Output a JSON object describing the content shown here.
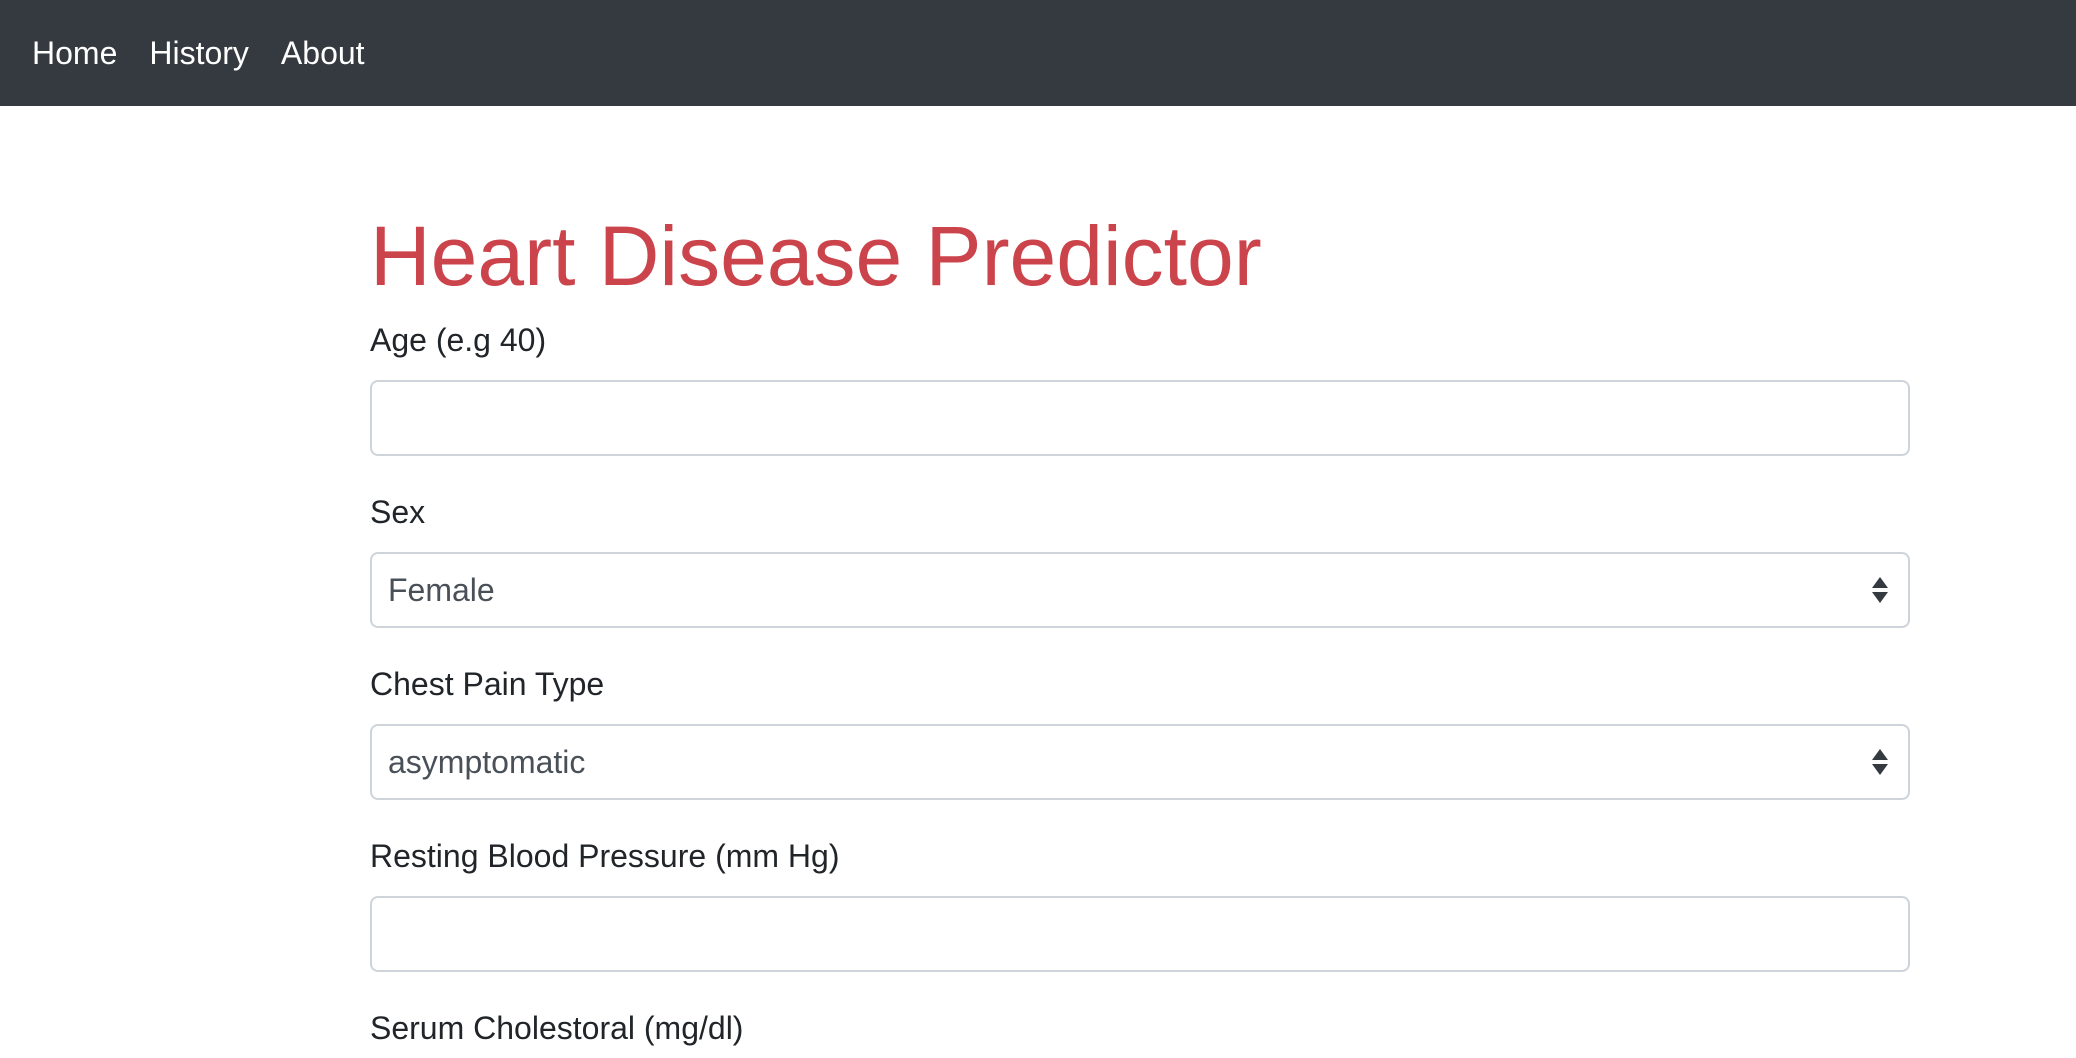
{
  "nav": {
    "items": [
      {
        "label": "Home"
      },
      {
        "label": "History"
      },
      {
        "label": "About"
      }
    ]
  },
  "page": {
    "title": "Heart Disease Predictor",
    "title_color": "#cc444b"
  },
  "form": {
    "age": {
      "label": "Age (e.g 40)",
      "value": ""
    },
    "sex": {
      "label": "Sex",
      "selected": "Female"
    },
    "chest_pain": {
      "label": "Chest Pain Type",
      "selected": "asymptomatic"
    },
    "resting_bp": {
      "label": "Resting Blood Pressure (mm Hg)",
      "value": ""
    },
    "cholesterol": {
      "label": "Serum Cholestoral (mg/dl)"
    }
  },
  "colors": {
    "navbar_bg": "#343a40",
    "input_border": "#ced4da"
  }
}
